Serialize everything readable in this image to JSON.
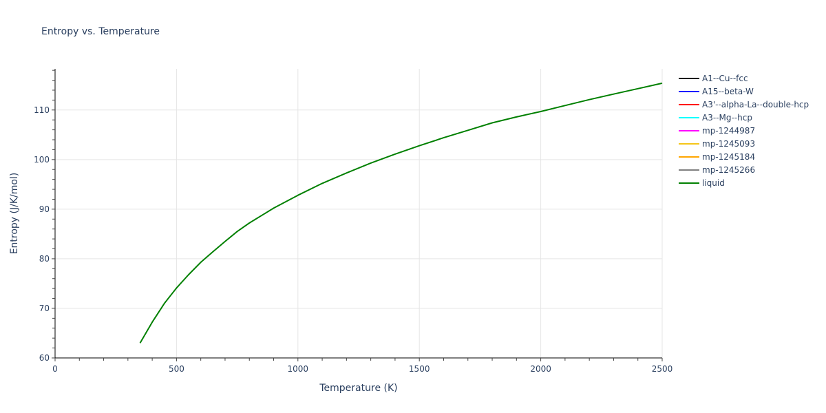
{
  "chart_data": {
    "type": "line",
    "title": "Entropy vs. Temperature",
    "xlabel": "Temperature (K)",
    "ylabel": "Entropy (J/K/mol)",
    "xlim": [
      0,
      2500
    ],
    "ylim": [
      60,
      118.3
    ],
    "x_ticks": [
      0,
      500,
      1000,
      1500,
      2000,
      2500
    ],
    "x_tick_labels": [
      "0",
      "500",
      "1000",
      "1500",
      "2000",
      "2500"
    ],
    "x_minor_step": 100,
    "y_ticks": [
      60,
      70,
      80,
      90,
      100,
      110
    ],
    "y_tick_labels": [
      "60",
      "70",
      "80",
      "90",
      "100",
      "110"
    ],
    "y_minor_step": 2,
    "grid": true,
    "legend_position": "right",
    "series": [
      {
        "name": "A1--Cu--fcc",
        "color": "#000000",
        "x": [],
        "y": []
      },
      {
        "name": "A15--beta-W",
        "color": "#0000ff",
        "x": [],
        "y": []
      },
      {
        "name": "A3'--alpha-La--double-hcp",
        "color": "#ff0000",
        "x": [],
        "y": []
      },
      {
        "name": "A3--Mg--hcp",
        "color": "#00ffff",
        "x": [],
        "y": []
      },
      {
        "name": "mp-1244987",
        "color": "#ff00ff",
        "x": [],
        "y": []
      },
      {
        "name": "mp-1245093",
        "color": "#f5c518",
        "x": [],
        "y": []
      },
      {
        "name": "mp-1245184",
        "color": "#ffa500",
        "x": [],
        "y": []
      },
      {
        "name": "mp-1245266",
        "color": "#808080",
        "x": [],
        "y": []
      },
      {
        "name": "liquid",
        "color": "#008000",
        "x": [
          350,
          400,
          450,
          500,
          550,
          600,
          650,
          700,
          750,
          800,
          900,
          1000,
          1100,
          1200,
          1300,
          1400,
          1500,
          1600,
          1700,
          1800,
          1900,
          2000,
          2100,
          2200,
          2300,
          2400,
          2500
        ],
        "y": [
          63.0,
          67.2,
          71.0,
          74.1,
          76.8,
          79.3,
          81.4,
          83.5,
          85.5,
          87.2,
          90.2,
          92.8,
          95.2,
          97.3,
          99.3,
          101.1,
          102.8,
          104.4,
          105.9,
          107.4,
          108.6,
          109.7,
          110.9,
          112.1,
          113.2,
          114.3,
          115.4
        ]
      }
    ]
  }
}
